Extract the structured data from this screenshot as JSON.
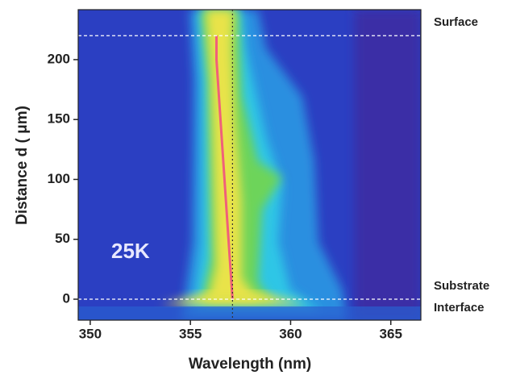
{
  "chart_data": {
    "type": "heatmap",
    "xlabel": "Wavelength (nm)",
    "ylabel": "Distance d ( μm)",
    "xlim": [
      349.4,
      366.5
    ],
    "ylim": [
      -17.5,
      241.7
    ],
    "xticks": [
      350,
      355,
      360,
      365
    ],
    "yticks": [
      0,
      50,
      100,
      150,
      200
    ],
    "ridge": {
      "x": [
        357.1,
        357.0,
        356.9,
        356.8,
        356.7,
        356.6,
        356.5,
        356.4,
        356.3,
        356.3
      ],
      "y": [
        0,
        25,
        50,
        75,
        100,
        125,
        150,
        175,
        200,
        220
      ],
      "color": "#f0607a"
    },
    "marker_wavelength": 357.1,
    "reference_lines": [
      220,
      0
    ],
    "annotations": {
      "surface": "Surface",
      "substrate": "Substrate",
      "interface": "Interface",
      "temperature": "25K"
    }
  }
}
